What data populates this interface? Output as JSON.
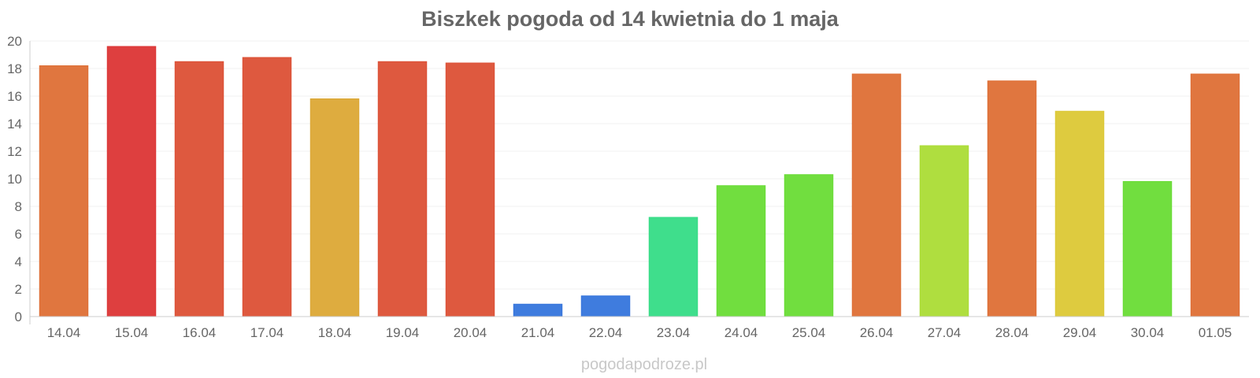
{
  "chart_data": {
    "type": "bar",
    "title": "Biszkek pogoda od 14 kwietnia do 1 maja",
    "categories": [
      "14.04",
      "15.04",
      "16.04",
      "17.04",
      "18.04",
      "19.04",
      "20.04",
      "21.04",
      "22.04",
      "23.04",
      "24.04",
      "25.04",
      "26.04",
      "27.04",
      "28.04",
      "29.04",
      "30.04",
      "01.05"
    ],
    "values": [
      18.2,
      19.6,
      18.5,
      18.8,
      15.8,
      18.5,
      18.4,
      0.9,
      1.5,
      7.2,
      9.5,
      10.3,
      17.6,
      12.4,
      17.1,
      14.9,
      9.8,
      17.6
    ],
    "colors": [
      "#de6f35",
      "#dc3535",
      "#dc5035",
      "#dc5035",
      "#dca835",
      "#dc5035",
      "#dc5035",
      "#3575dc",
      "#3575dc",
      "#35dc86",
      "#69dc35",
      "#69dc35",
      "#de6f35",
      "#abdc35",
      "#de6f35",
      "#dcc835",
      "#69dc35",
      "#de6f35"
    ],
    "xlabel": "",
    "ylabel": "",
    "ylim": [
      0,
      20
    ],
    "yticks": [
      0,
      2,
      4,
      6,
      8,
      10,
      12,
      14,
      16,
      18,
      20
    ],
    "grid": true,
    "legend": "none"
  },
  "watermark": "pogodapodroze.pl"
}
